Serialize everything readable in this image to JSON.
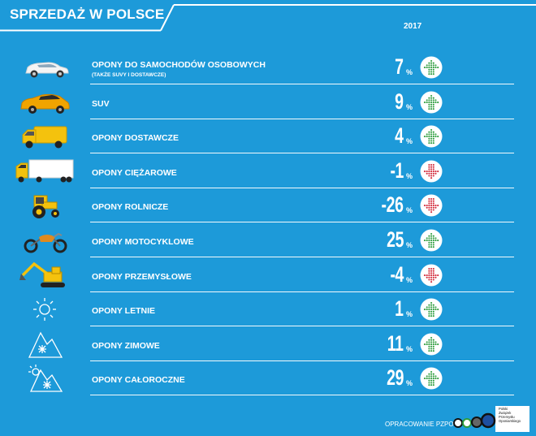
{
  "header": {
    "title": "SPRZEDAŻ W POLSCE",
    "year": "2017"
  },
  "colors": {
    "background": "#1d9ad9",
    "up": "#2e9d3e",
    "down": "#d22a3a"
  },
  "rows": [
    {
      "icon": "car-icon",
      "label": "OPONY DO SAMOCHODÓW OSOBOWYCH",
      "sublabel": "(TAKŻE SUVY I DOSTAWCZE)",
      "value": "7",
      "unit": "%",
      "trend": "up"
    },
    {
      "icon": "suv-icon",
      "label": "SUV",
      "value": "9",
      "unit": "%",
      "trend": "up"
    },
    {
      "icon": "van-icon",
      "label": "OPONY DOSTAWCZE",
      "value": "4",
      "unit": "%",
      "trend": "up"
    },
    {
      "icon": "truck-icon",
      "label": "OPONY CIĘŻAROWE",
      "value": "-1",
      "unit": "%",
      "trend": "down"
    },
    {
      "icon": "tractor-icon",
      "label": "OPONY ROLNICZE",
      "value": "-26",
      "unit": "%",
      "trend": "down"
    },
    {
      "icon": "motorcycle-icon",
      "label": "OPONY MOTOCYKLOWE",
      "value": "25",
      "unit": "%",
      "trend": "up"
    },
    {
      "icon": "excavator-icon",
      "label": "OPONY PRZEMYSŁOWE",
      "value": "-4",
      "unit": "%",
      "trend": "down"
    },
    {
      "icon": "sun-icon",
      "label": "OPONY LETNIE",
      "value": "1",
      "unit": "%",
      "trend": "up"
    },
    {
      "icon": "snow-mountain-icon",
      "label": "OPONY ZIMOWE",
      "value": "11",
      "unit": "%",
      "trend": "up"
    },
    {
      "icon": "sun-snow-mountain-icon",
      "label": "OPONY CAŁOROCZNE",
      "value": "29",
      "unit": "%",
      "trend": "up"
    }
  ],
  "footer": {
    "credit": "OPRACOWANIE PZPO",
    "logo_lines": [
      "Polski",
      "Związek",
      "Przemysłu",
      "Oponiarskiego"
    ]
  }
}
